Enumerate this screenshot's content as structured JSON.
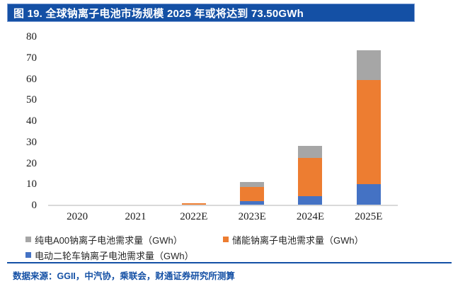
{
  "header": {
    "title": "图 19. 全球钠离子电池市场规模 2025 年或将达到 73.50GWh"
  },
  "colors": {
    "title_bar": "#1450a5",
    "title_border": "#7c9cd3",
    "title_text": "#ffffff",
    "bar_blue": "#4472c4",
    "bar_orange": "#ed7d31",
    "bar_gray": "#a6a6a6",
    "axis_line": "#d9d9d9",
    "divider": "#1450a5",
    "source_text": "#1450a5"
  },
  "chart_data": {
    "type": "bar",
    "stacked": true,
    "title": "全球钠离子电池市场规模 2025 年或将达到 73.50GWh",
    "categories": [
      "2020",
      "2021",
      "2022E",
      "2023E",
      "2024E",
      "2025E"
    ],
    "series": [
      {
        "name": "电动二轮车钠离子电池需求量（GWh）",
        "color_key": "bar_blue",
        "values": [
          0,
          0,
          0,
          2.0,
          4.5,
          10.0
        ]
      },
      {
        "name": "储能钠离子电池需求量（GWh）",
        "color_key": "bar_orange",
        "values": [
          0,
          0,
          1.0,
          6.7,
          18.0,
          49.5
        ]
      },
      {
        "name": "纯电A00钠离子电池需求量（GWh）",
        "color_key": "bar_gray",
        "values": [
          0,
          0,
          0,
          2.3,
          5.7,
          14.0
        ]
      }
    ],
    "totals": [
      0,
      0,
      1.0,
      11.0,
      28.2,
      73.5
    ],
    "xlabel": "",
    "ylabel": "",
    "ylim": [
      0,
      80
    ],
    "ytick_step": 10,
    "grid": false,
    "legend_position": "bottom"
  },
  "legend": {
    "items": [
      {
        "label": "纯电A00钠离子电池需求量（GWh）",
        "color_key": "bar_gray",
        "row": 0
      },
      {
        "label": "储能钠离子电池需求量（GWh）",
        "color_key": "bar_orange",
        "row": 0
      },
      {
        "label": "电动二轮车钠离子电池需求量（GWh）",
        "color_key": "bar_blue",
        "row": 1
      }
    ]
  },
  "footer": {
    "source": "数据来源：GGII，中汽协，乘联会，财通证券研究所测算"
  }
}
